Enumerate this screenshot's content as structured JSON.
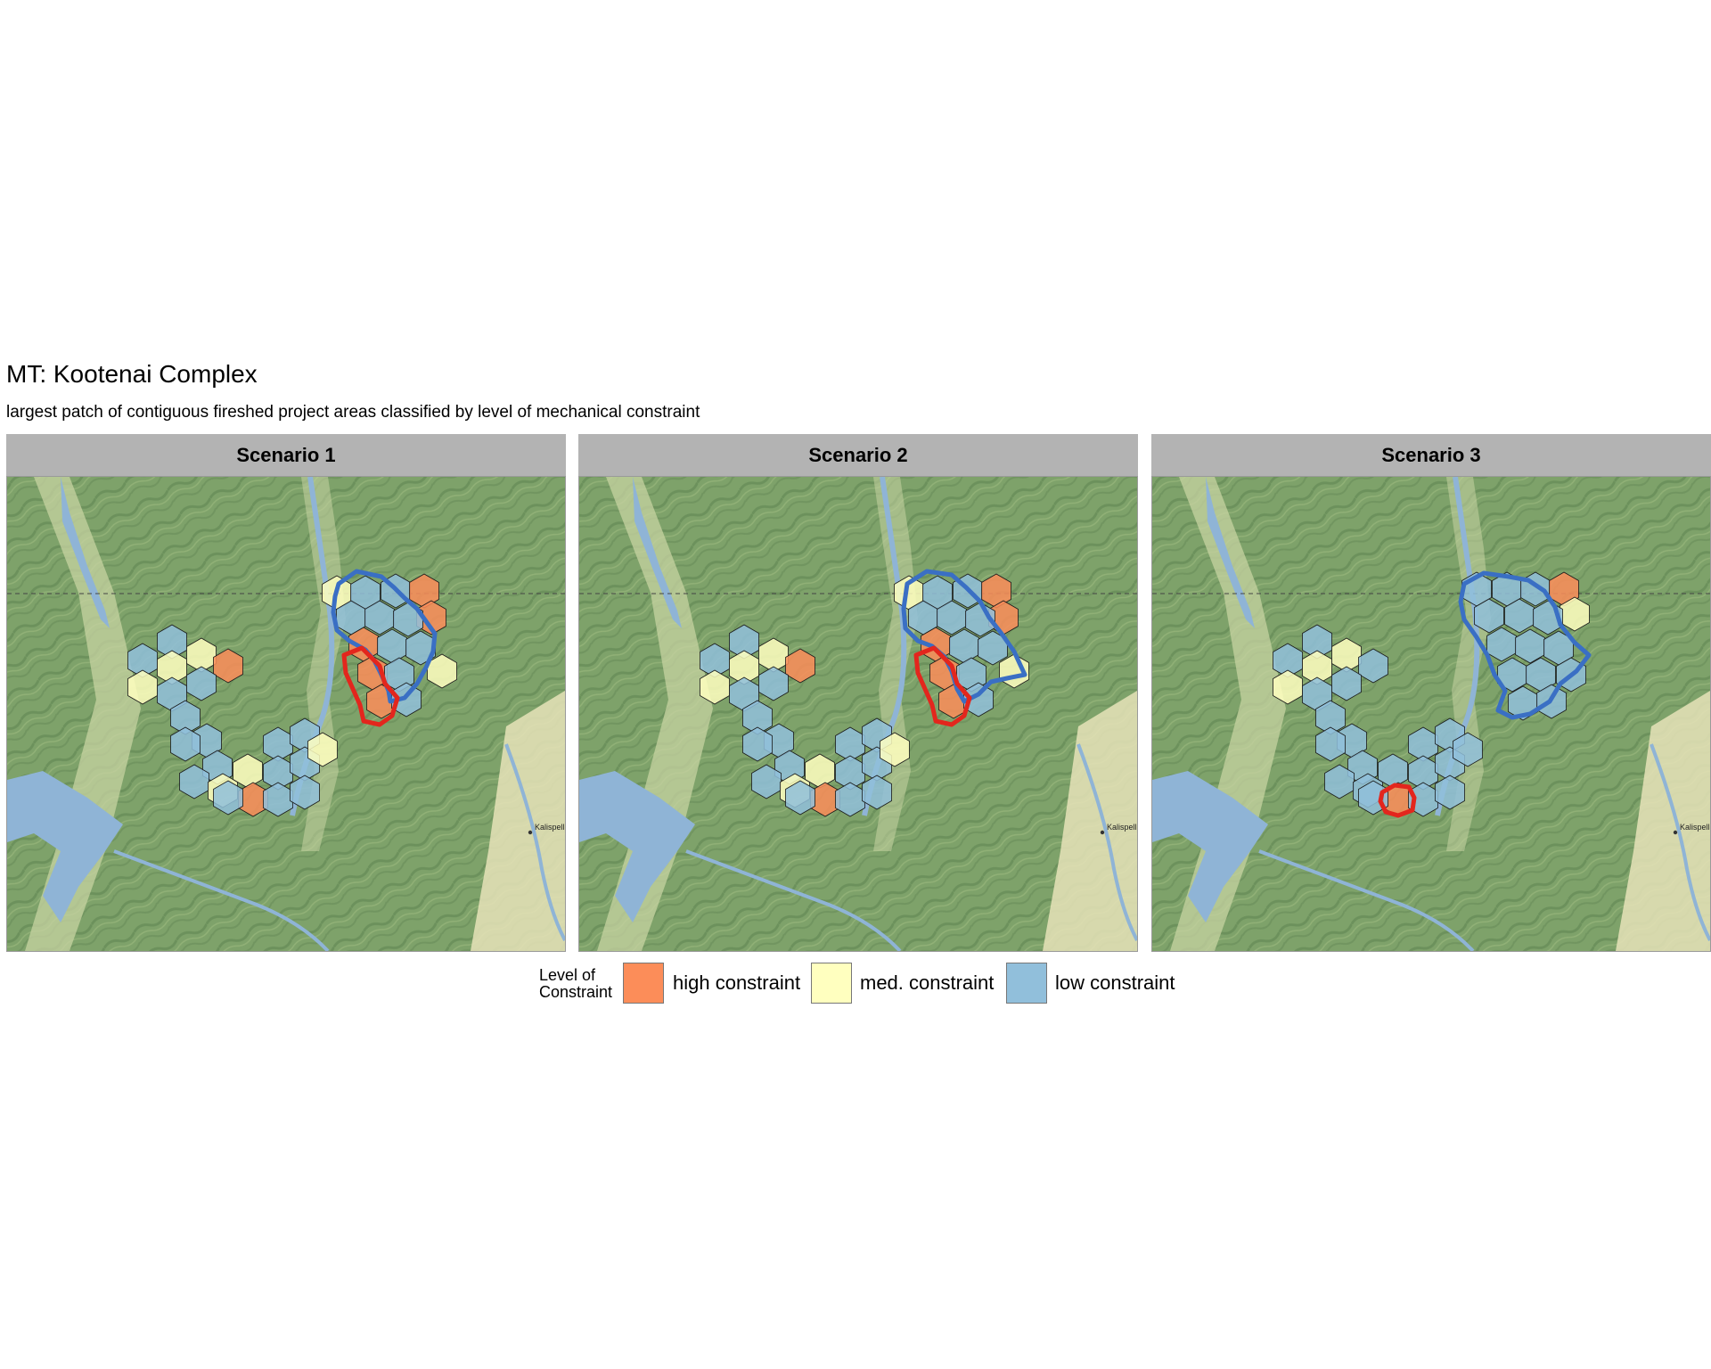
{
  "title": "MT: Kootenai Complex",
  "subtitle": "largest patch of contiguous fireshed project areas classified by level of mechanical constraint",
  "panels": [
    {
      "label": "Scenario 1",
      "city_label": "Kalispell"
    },
    {
      "label": "Scenario 2",
      "city_label": "Kalispell"
    },
    {
      "label": "Scenario 3",
      "city_label": "Kalispell"
    }
  ],
  "legend": {
    "title_line1": "Level of",
    "title_line2": "Constraint",
    "items": [
      {
        "label": "high constraint",
        "color": "#fc8d59"
      },
      {
        "label": "med. constraint",
        "color": "#ffffbf"
      },
      {
        "label": "low constraint",
        "color": "#91bfdb"
      }
    ]
  },
  "colors": {
    "terrain": "#7ea26a",
    "terrain_dark": "#5c8250",
    "valley": "#c7d3a2",
    "water": "#8fb4d6",
    "highlight_red": "#e3261d",
    "highlight_blue": "#3a6fc4"
  }
}
